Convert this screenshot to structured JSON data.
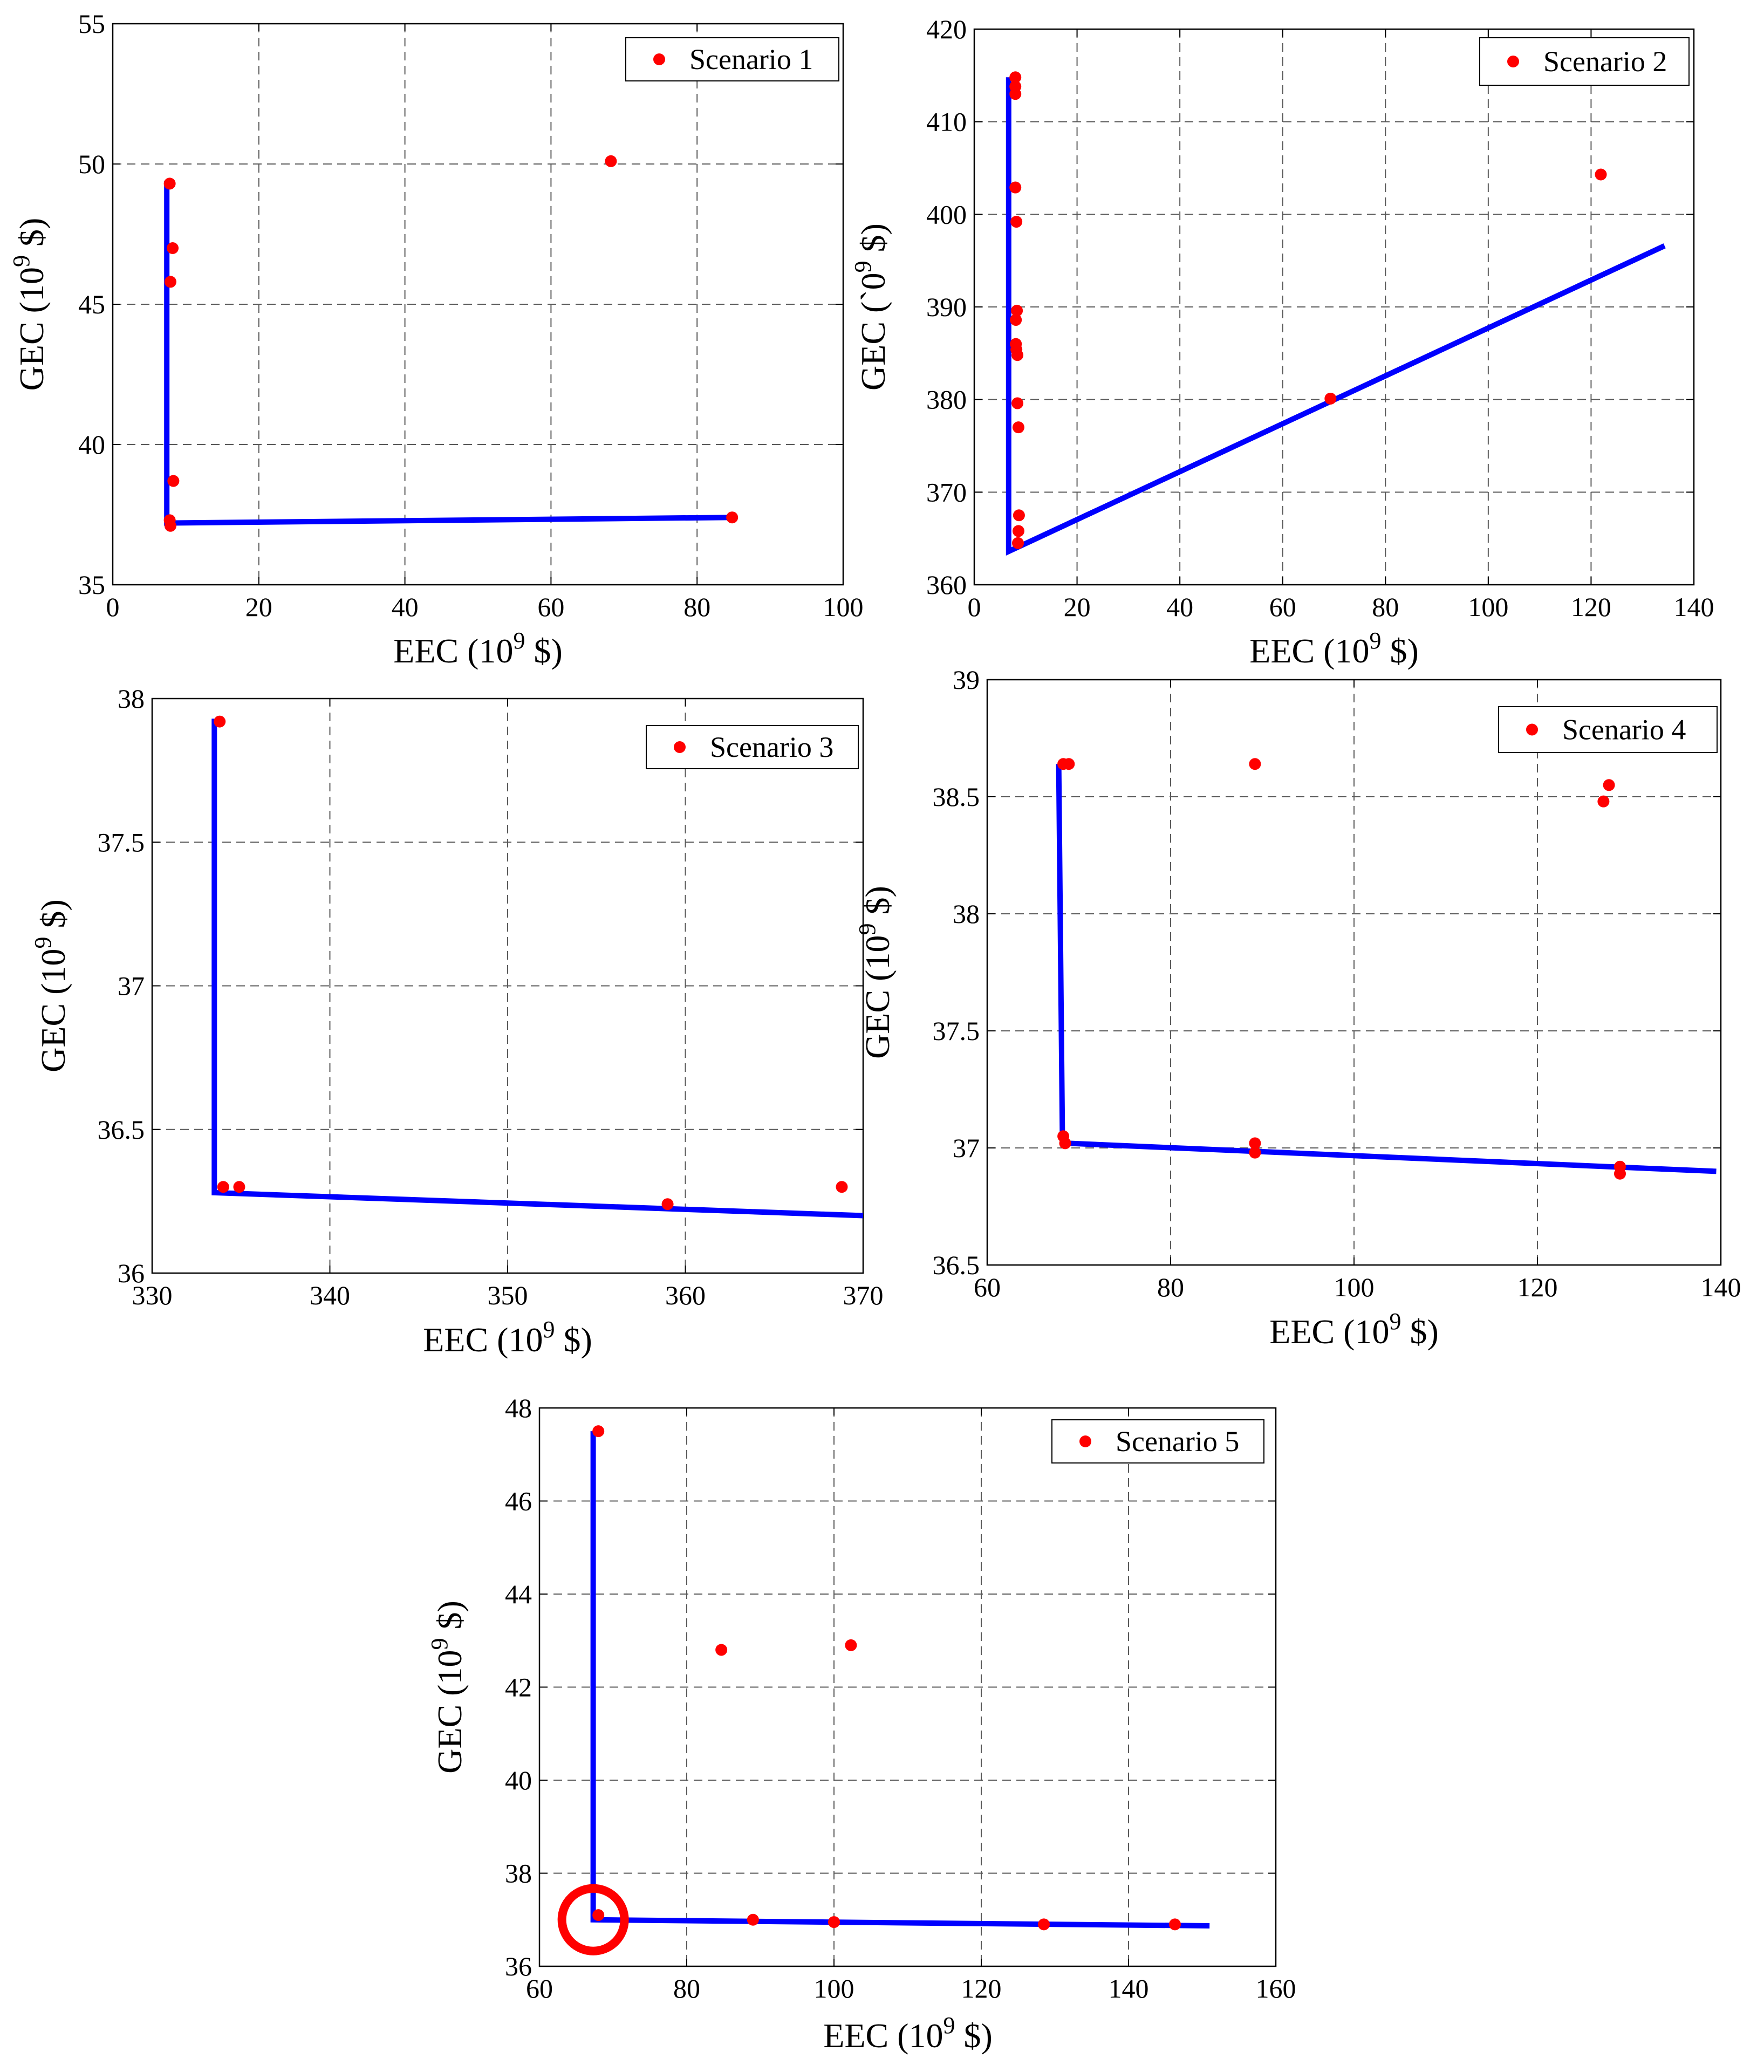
{
  "figure": {
    "xlabel": "EEC (10",
    "xlabel_exp": "9",
    "xlabel_unit": " $)",
    "ylabel": "GEC (10",
    "ylabel_exp": "9",
    "ylabel_unit": " $)"
  },
  "colors": {
    "points": "#ff0000",
    "line": "#0000ff",
    "grid": "#5a5a5a",
    "marker_circle": "#ff0000"
  },
  "chart_data": [
    {
      "id": "s1",
      "type": "scatter",
      "legend": "Scenario 1",
      "legend_position": "top-right",
      "xlim": [
        0,
        100
      ],
      "ylim": [
        35,
        55
      ],
      "xticks": [
        0,
        20,
        40,
        60,
        80,
        100
      ],
      "yticks": [
        35,
        40,
        45,
        50,
        55
      ],
      "xtick_labels": [
        "0",
        "20",
        "40",
        "60",
        "80",
        "100"
      ],
      "ytick_labels": [
        "35",
        "40",
        "45",
        "50",
        "55"
      ],
      "points": [
        [
          7.8,
          49.3
        ],
        [
          8.2,
          47.0
        ],
        [
          7.9,
          45.8
        ],
        [
          8.3,
          38.7
        ],
        [
          7.8,
          37.3
        ],
        [
          7.9,
          37.1
        ],
        [
          68.2,
          50.1
        ],
        [
          84.8,
          37.4
        ]
      ],
      "line": [
        [
          7.4,
          49.4
        ],
        [
          7.4,
          37.5
        ],
        [
          7.4,
          37.2
        ],
        [
          84.8,
          37.4
        ]
      ]
    },
    {
      "id": "s2",
      "type": "scatter",
      "legend": "Scenario 2",
      "legend_position": "top-right",
      "xlim": [
        0,
        140
      ],
      "ylim": [
        360,
        420
      ],
      "xticks": [
        0,
        20,
        40,
        60,
        80,
        100,
        120,
        140
      ],
      "yticks": [
        360,
        370,
        380,
        390,
        400,
        410,
        420
      ],
      "xtick_labels": [
        "0",
        "20",
        "40",
        "60",
        "80",
        "100",
        "120",
        "140"
      ],
      "ytick_labels": [
        "360",
        "370",
        "380",
        "390",
        "400",
        "410",
        "420"
      ],
      "ylabel_override": "GEC (`0",
      "points": [
        [
          8.0,
          414.8
        ],
        [
          8.0,
          413.8
        ],
        [
          8.0,
          413.0
        ],
        [
          8.0,
          402.9
        ],
        [
          8.2,
          399.2
        ],
        [
          8.3,
          389.6
        ],
        [
          8.1,
          388.6
        ],
        [
          8.1,
          386.0
        ],
        [
          8.2,
          385.4
        ],
        [
          8.4,
          384.8
        ],
        [
          8.4,
          379.6
        ],
        [
          8.6,
          377.0
        ],
        [
          8.7,
          367.5
        ],
        [
          8.6,
          365.8
        ],
        [
          8.5,
          364.5
        ],
        [
          69.3,
          380.1
        ],
        [
          121.9,
          404.3
        ]
      ],
      "line": [
        [
          6.7,
          414.8
        ],
        [
          6.7,
          363.6
        ],
        [
          134.3,
          396.6
        ]
      ]
    },
    {
      "id": "s3",
      "type": "scatter",
      "legend": "Scenario 3",
      "legend_position": "top-right",
      "xlim": [
        330,
        370
      ],
      "ylim": [
        36,
        38
      ],
      "xticks": [
        330,
        340,
        350,
        360,
        370
      ],
      "yticks": [
        36,
        36.5,
        37,
        37.5,
        38
      ],
      "xtick_labels": [
        "330",
        "340",
        "350",
        "360",
        "370"
      ],
      "ytick_labels": [
        "36",
        "36.5",
        "37",
        "37.5",
        "38"
      ],
      "points": [
        [
          333.8,
          37.92
        ],
        [
          334.0,
          36.3
        ],
        [
          334.9,
          36.3
        ],
        [
          359.0,
          36.24
        ],
        [
          368.8,
          36.3
        ]
      ],
      "line": [
        [
          333.5,
          37.93
        ],
        [
          333.5,
          36.28
        ],
        [
          370.0,
          36.2
        ]
      ]
    },
    {
      "id": "s4",
      "type": "scatter",
      "legend": "Scenario 4",
      "legend_position": "top-right",
      "xlim": [
        60,
        140
      ],
      "ylim": [
        36.5,
        39
      ],
      "xticks": [
        60,
        80,
        100,
        120,
        140
      ],
      "yticks": [
        36.5,
        37,
        37.5,
        38,
        38.5,
        39
      ],
      "xtick_labels": [
        "60",
        "80",
        "100",
        "120",
        "140"
      ],
      "ytick_labels": [
        "36.5",
        "37",
        "37.5",
        "38",
        "38.5",
        "39"
      ],
      "points": [
        [
          68.3,
          38.64
        ],
        [
          68.9,
          38.64
        ],
        [
          89.2,
          38.64
        ],
        [
          127.2,
          38.48
        ],
        [
          127.8,
          38.55
        ],
        [
          68.3,
          37.05
        ],
        [
          68.5,
          37.02
        ],
        [
          89.2,
          37.02
        ],
        [
          89.2,
          36.98
        ],
        [
          129.0,
          36.92
        ],
        [
          129.0,
          36.89
        ]
      ],
      "line": [
        [
          67.8,
          38.64
        ],
        [
          68.2,
          37.05
        ],
        [
          68.7,
          37.02
        ],
        [
          139.5,
          36.9
        ]
      ]
    },
    {
      "id": "s5",
      "type": "scatter",
      "legend": "Scenario 5",
      "legend_position": "top-right",
      "xlim": [
        60,
        160
      ],
      "ylim": [
        36,
        48
      ],
      "xticks": [
        60,
        80,
        100,
        120,
        140,
        160
      ],
      "yticks": [
        36,
        38,
        40,
        42,
        44,
        46,
        48
      ],
      "xtick_labels": [
        "60",
        "80",
        "100",
        "120",
        "140",
        "160"
      ],
      "ytick_labels": [
        "36",
        "38",
        "40",
        "42",
        "44",
        "46",
        "48"
      ],
      "points": [
        [
          68.0,
          47.5
        ],
        [
          84.7,
          42.8
        ],
        [
          102.3,
          42.9
        ],
        [
          68.0,
          37.1
        ],
        [
          89.0,
          37.0
        ],
        [
          100.0,
          36.95
        ],
        [
          128.5,
          36.9
        ],
        [
          146.3,
          36.9
        ]
      ],
      "line": [
        [
          67.3,
          47.5
        ],
        [
          67.3,
          37.0
        ],
        [
          151.0,
          36.87
        ]
      ],
      "highlight_circle": {
        "x": 67.3,
        "y": 37.0
      }
    }
  ]
}
